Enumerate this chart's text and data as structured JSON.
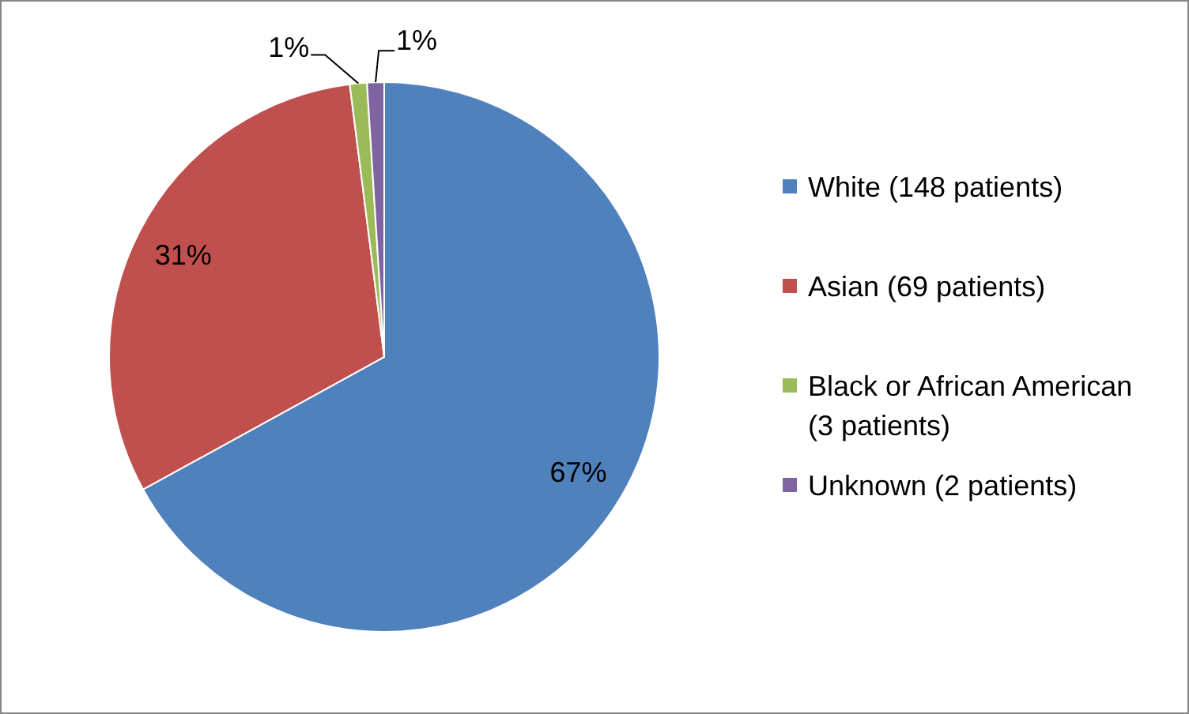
{
  "chart_data": {
    "type": "pie",
    "categories": [
      "White (148 patients)",
      "Asian (69 patients)",
      "Black or African American (3 patients)",
      "Unknown (2 patients)"
    ],
    "values": [
      67,
      31,
      1,
      1
    ],
    "colors": [
      "#4f81bd",
      "#c0504d",
      "#9bbb59",
      "#8064a2"
    ],
    "value_labels": [
      "67%",
      "31%",
      "1%",
      "1%"
    ],
    "legend": "right"
  }
}
